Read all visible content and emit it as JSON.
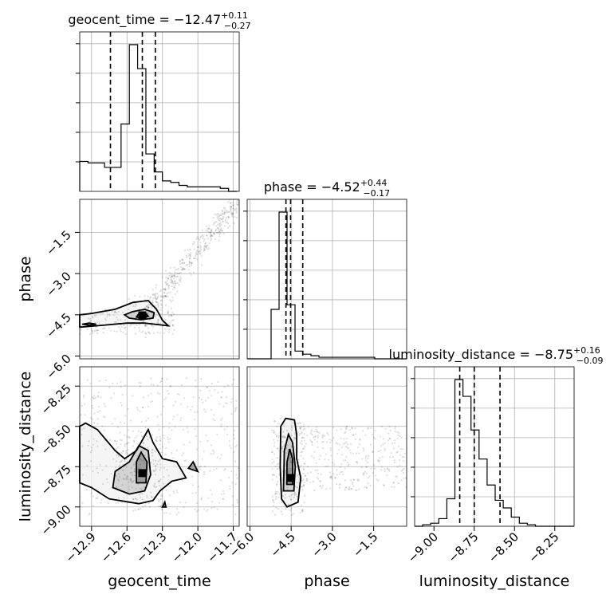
{
  "chart_data": {
    "type": "corner",
    "parameters": [
      {
        "name": "geocent_time",
        "axis_label": "geocent_time",
        "median": "−12.47",
        "plus": "+0.11",
        "minus": "−0.27",
        "title_prefix": "geocent_time = ",
        "range": [
          -13.0,
          -11.65
        ],
        "ticks": [
          -12.9,
          -12.6,
          -12.3,
          -12.0,
          -11.7
        ],
        "tick_labels": [
          "−12.9",
          "−12.6",
          "−12.3",
          "−12.0",
          "−11.7"
        ],
        "quantiles": [
          -12.74,
          -12.47,
          -12.36
        ],
        "hist_edges": [
          -13.0,
          -12.93,
          -12.86,
          -12.79,
          -12.72,
          -12.65,
          -12.58,
          -12.51,
          -12.44,
          -12.37,
          -12.3,
          -12.23,
          -12.16,
          -12.09,
          -12.02,
          -11.95,
          -11.88,
          -11.81,
          -11.74,
          -11.67
        ],
        "hist_counts": [
          0.2,
          0.19,
          0.19,
          0.16,
          0.16,
          0.45,
          0.98,
          0.82,
          0.25,
          0.13,
          0.07,
          0.06,
          0.04,
          0.03,
          0.03,
          0.03,
          0.03,
          0.02,
          0.0
        ]
      },
      {
        "name": "phase",
        "axis_label": "phase",
        "median": "−4.52",
        "plus": "+0.44",
        "minus": "−0.17",
        "title_prefix": "phase = ",
        "range": [
          -6.1,
          -0.3
        ],
        "ticks": [
          -6.0,
          -4.5,
          -3.0,
          -1.5
        ],
        "tick_labels": [
          "−6.0",
          "−4.5",
          "−3.0",
          "−1.5"
        ],
        "quantiles": [
          -4.69,
          -4.52,
          -4.08
        ],
        "hist_edges": [
          -6.1,
          -5.81,
          -5.52,
          -5.23,
          -4.94,
          -4.65,
          -4.36,
          -4.07,
          -3.78,
          -3.49,
          -3.2,
          -2.91,
          -2.62,
          -2.33,
          -2.04,
          -1.75,
          -1.46,
          -1.17,
          -0.88,
          -0.59,
          -0.3
        ],
        "hist_counts": [
          0.0,
          0.0,
          0.0,
          0.32,
          0.95,
          0.35,
          0.05,
          0.03,
          0.02,
          0.01,
          0.01,
          0.01,
          0.01,
          0.01,
          0.01,
          0.01,
          0.0,
          0.0,
          0.0,
          0.0
        ]
      },
      {
        "name": "luminosity_distance",
        "axis_label": "luminosity_distance",
        "median": "−8.75",
        "plus": "+0.16",
        "minus": "−0.09",
        "title_prefix": "luminosity_distance = ",
        "range": [
          -9.12,
          -8.13
        ],
        "ticks": [
          -9.0,
          -8.75,
          -8.5,
          -8.25
        ],
        "tick_labels": [
          "−9.00",
          "−8.75",
          "−8.50",
          "−8.25"
        ],
        "quantiles": [
          -8.84,
          -8.75,
          -8.59
        ],
        "hist_edges": [
          -9.12,
          -9.07,
          -9.02,
          -8.97,
          -8.92,
          -8.87,
          -8.82,
          -8.77,
          -8.72,
          -8.67,
          -8.62,
          -8.57,
          -8.52,
          -8.47,
          -8.42,
          -8.37,
          -8.32,
          -8.27,
          -8.22,
          -8.17,
          -8.13
        ],
        "hist_counts": [
          0.0,
          0.01,
          0.02,
          0.05,
          0.18,
          0.96,
          0.85,
          0.63,
          0.44,
          0.27,
          0.17,
          0.12,
          0.06,
          0.02,
          0.01,
          0.0,
          0.0,
          0.0,
          0.0,
          0.0
        ]
      }
    ],
    "scatter_panels": [
      {
        "x_param": 0,
        "y_param": 1,
        "point_clouds": [
          {
            "x": [
              -12.45,
              -11.65
            ],
            "y": [
              -4.5,
              -0.3
            ],
            "n": 420,
            "spread_y": 0.25
          },
          {
            "x": [
              -13.0,
              -12.2
            ],
            "y": [
              -5.2,
              -4.3
            ],
            "n": 160,
            "spread_y": 0.0
          },
          {
            "x": [
              -12.6,
              -12.2
            ],
            "y": [
              -4.8,
              -3.8
            ],
            "n": 60,
            "spread_y": 0.0
          }
        ],
        "density_max": [
          -12.47,
          -4.52
        ],
        "contours": [
          [
            [
              -13.0,
              -4.95
            ],
            [
              -12.8,
              -4.88
            ],
            [
              -12.6,
              -4.8
            ],
            [
              -12.45,
              -4.8
            ],
            [
              -12.25,
              -4.9
            ],
            [
              -12.3,
              -4.7
            ],
            [
              -12.35,
              -4.3
            ],
            [
              -12.42,
              -3.98
            ],
            [
              -12.55,
              -4.05
            ],
            [
              -12.7,
              -4.3
            ],
            [
              -12.9,
              -4.45
            ],
            [
              -13.0,
              -4.5
            ]
          ],
          [
            [
              -12.58,
              -4.62
            ],
            [
              -12.48,
              -4.68
            ],
            [
              -12.38,
              -4.62
            ],
            [
              -12.37,
              -4.42
            ],
            [
              -12.45,
              -4.3
            ],
            [
              -12.55,
              -4.38
            ],
            [
              -12.62,
              -4.5
            ]
          ],
          [
            [
              -12.52,
              -4.58
            ],
            [
              -12.46,
              -4.62
            ],
            [
              -12.42,
              -4.55
            ],
            [
              -12.44,
              -4.46
            ],
            [
              -12.5,
              -4.46
            ]
          ],
          [
            [
              -12.92,
              -4.88
            ],
            [
              -12.86,
              -4.84
            ],
            [
              -12.92,
              -4.8
            ],
            [
              -12.98,
              -4.84
            ]
          ]
        ]
      },
      {
        "x_param": 0,
        "y_param": 2,
        "point_clouds": [
          {
            "x": [
              -13.0,
              -11.65
            ],
            "y": [
              -9.05,
              -8.2
            ],
            "n": 420,
            "spread_y": 0.0
          },
          {
            "x": [
              -12.7,
              -12.3
            ],
            "y": [
              -9.0,
              -8.55
            ],
            "n": 180,
            "spread_y": 0.0
          }
        ],
        "density_max": [
          -12.47,
          -8.79
        ],
        "contours": [
          [
            [
              -13.0,
              -8.85
            ],
            [
              -12.9,
              -8.88
            ],
            [
              -12.75,
              -8.95
            ],
            [
              -12.5,
              -8.98
            ],
            [
              -12.38,
              -8.96
            ],
            [
              -12.32,
              -8.9
            ],
            [
              -12.22,
              -8.84
            ],
            [
              -12.1,
              -8.82
            ],
            [
              -12.18,
              -8.72
            ],
            [
              -12.3,
              -8.7
            ],
            [
              -12.38,
              -8.6
            ],
            [
              -12.42,
              -8.52
            ],
            [
              -12.52,
              -8.65
            ],
            [
              -12.62,
              -8.7
            ],
            [
              -12.7,
              -8.65
            ],
            [
              -12.85,
              -8.52
            ],
            [
              -12.95,
              -8.48
            ],
            [
              -13.0,
              -8.5
            ]
          ],
          [
            [
              -12.72,
              -8.88
            ],
            [
              -12.58,
              -8.92
            ],
            [
              -12.45,
              -8.9
            ],
            [
              -12.4,
              -8.8
            ],
            [
              -12.42,
              -8.65
            ],
            [
              -12.5,
              -8.62
            ],
            [
              -12.58,
              -8.72
            ],
            [
              -12.7,
              -8.78
            ]
          ],
          [
            [
              -12.52,
              -8.85
            ],
            [
              -12.44,
              -8.85
            ],
            [
              -12.43,
              -8.72
            ],
            [
              -12.48,
              -8.66
            ],
            [
              -12.52,
              -8.72
            ]
          ],
          [
            [
              -12.08,
              -8.76
            ],
            [
              -12.0,
              -8.78
            ],
            [
              -12.04,
              -8.72
            ]
          ],
          [
            [
              -12.3,
              -9.0
            ],
            [
              -12.27,
              -9.0
            ],
            [
              -12.28,
              -8.97
            ]
          ]
        ]
      },
      {
        "x_param": 1,
        "y_param": 2,
        "point_clouds": [
          {
            "x": [
              -4.9,
              -0.3
            ],
            "y": [
              -8.9,
              -8.5
            ],
            "n": 380,
            "spread_y": 0.0
          },
          {
            "x": [
              -5.2,
              -4.0
            ],
            "y": [
              -9.05,
              -8.45
            ],
            "n": 200,
            "spread_y": 0.0
          }
        ],
        "density_max": [
          -4.52,
          -8.82
        ],
        "contours": [
          [
            [
              -4.85,
              -8.95
            ],
            [
              -4.65,
              -9.0
            ],
            [
              -4.25,
              -8.97
            ],
            [
              -4.15,
              -8.82
            ],
            [
              -4.3,
              -8.7
            ],
            [
              -4.3,
              -8.55
            ],
            [
              -4.38,
              -8.46
            ],
            [
              -4.7,
              -8.45
            ],
            [
              -4.88,
              -8.5
            ],
            [
              -4.9,
              -8.75
            ]
          ],
          [
            [
              -4.78,
              -8.9
            ],
            [
              -4.4,
              -8.9
            ],
            [
              -4.35,
              -8.75
            ],
            [
              -4.45,
              -8.6
            ],
            [
              -4.6,
              -8.55
            ],
            [
              -4.75,
              -8.65
            ]
          ],
          [
            [
              -4.66,
              -8.86
            ],
            [
              -4.44,
              -8.86
            ],
            [
              -4.45,
              -8.7
            ],
            [
              -4.55,
              -8.64
            ],
            [
              -4.65,
              -8.72
            ]
          ]
        ]
      }
    ]
  }
}
